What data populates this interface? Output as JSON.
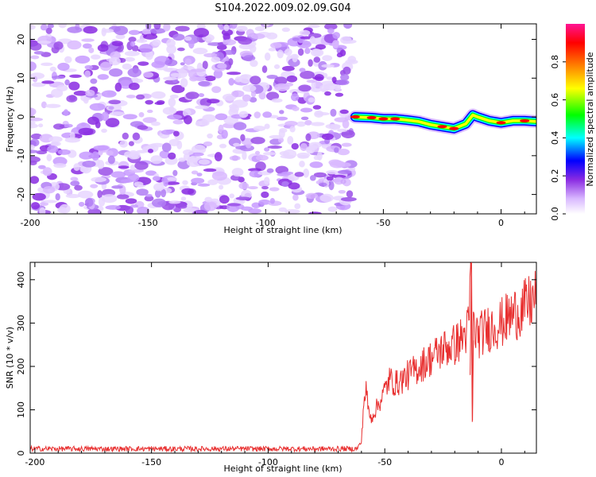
{
  "chart_data": [
    {
      "type": "heatmap",
      "title": "S104.2022.009.02.09.G04",
      "xlabel": "Height of straight line (km)",
      "ylabel": "Frequency (Hz)",
      "xlim": [
        -200,
        15
      ],
      "ylim": [
        -25,
        24
      ],
      "xticks": [
        -200,
        -150,
        -100,
        -50,
        0
      ],
      "yticks": [
        -20,
        -10,
        0,
        10,
        20
      ],
      "colorbar": {
        "label": "Normalized spectral amplitude",
        "range": [
          0.0,
          1.0
        ],
        "ticks": [
          0.0,
          0.2,
          0.4,
          0.6,
          0.8
        ],
        "colors": [
          "#ffffff",
          "#d9b8ff",
          "#8a2be2",
          "#0000ff",
          "#00ffff",
          "#00ff00",
          "#ffff00",
          "#ff8000",
          "#ff0000",
          "#ff1493"
        ]
      },
      "noise_region_x": [
        -200,
        -63
      ],
      "signal_track": {
        "x": [
          -62,
          -55,
          -50,
          -45,
          -40,
          -35,
          -30,
          -25,
          -20,
          -15,
          -12,
          -10,
          -5,
          0,
          5,
          10,
          15
        ],
        "frequency": [
          0.0,
          -0.2,
          -0.5,
          -0.5,
          -0.8,
          -1.2,
          -2.0,
          -2.5,
          -3.0,
          -1.8,
          0.5,
          0.0,
          -1.0,
          -1.5,
          -1.0,
          -1.0,
          -1.2
        ],
        "amplitude": [
          0.75,
          0.85,
          0.85,
          0.8,
          0.7,
          0.55,
          0.65,
          0.9,
          0.85,
          0.4,
          0.35,
          0.5,
          0.45,
          0.8,
          0.55,
          0.9,
          0.7
        ]
      }
    },
    {
      "type": "line",
      "title": "",
      "xlabel": "Height of straight line (km)",
      "ylabel": "SNR (10 * v/v)",
      "xlim": [
        -202,
        15
      ],
      "ylim": [
        0,
        440
      ],
      "xticks": [
        -200,
        -150,
        -100,
        -50,
        0
      ],
      "yticks": [
        0,
        100,
        200,
        300,
        400
      ],
      "series": [
        {
          "color": "#e83030",
          "x": [
            -202,
            -180,
            -160,
            -140,
            -120,
            -100,
            -80,
            -70,
            -62,
            -60,
            -59,
            -58,
            -57,
            -56,
            -52,
            -48,
            -45,
            -40,
            -35,
            -30,
            -25,
            -20,
            -16,
            -14,
            -13,
            -12.5,
            -12,
            -10,
            -5,
            0,
            5,
            10,
            15
          ],
          "values": [
            10,
            10,
            10,
            10,
            10,
            10,
            10,
            10,
            10,
            25,
            120,
            145,
            100,
            80,
            120,
            170,
            160,
            180,
            200,
            220,
            240,
            250,
            270,
            290,
            440,
            75,
            290,
            270,
            290,
            300,
            320,
            335,
            360
          ]
        }
      ]
    }
  ]
}
